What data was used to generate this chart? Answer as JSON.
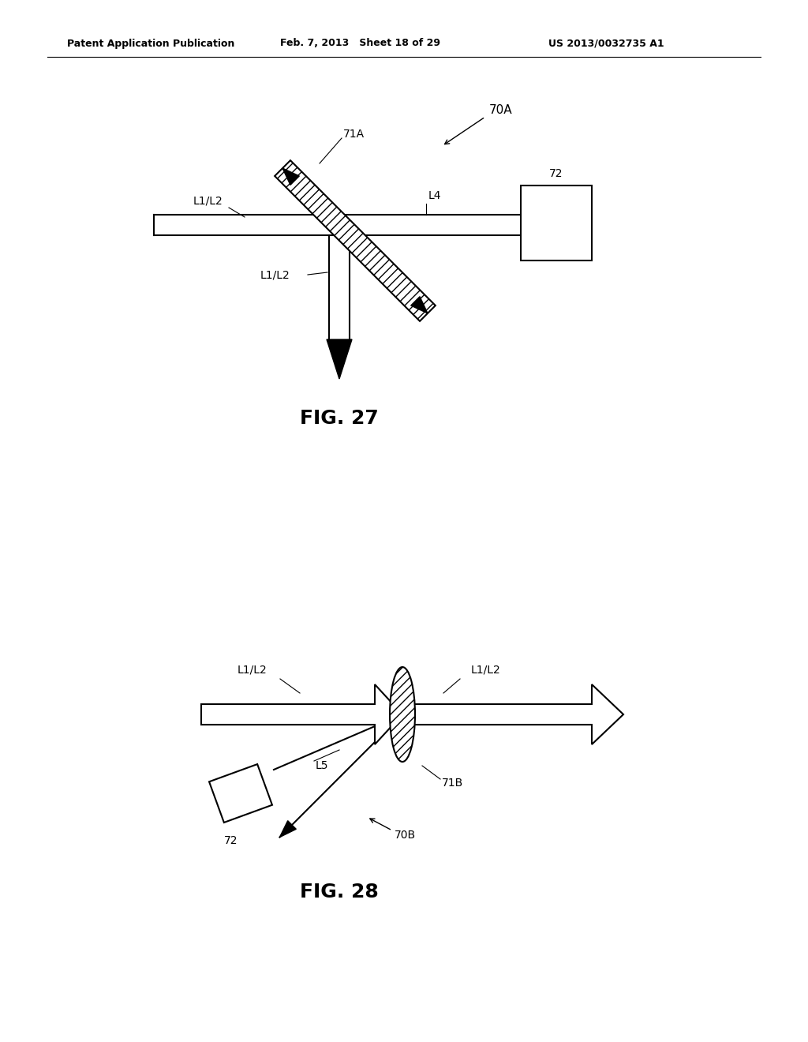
{
  "bg_color": "#ffffff",
  "line_color": "#000000",
  "header_left": "Patent Application Publication",
  "header_mid": "Feb. 7, 2013   Sheet 18 of 29",
  "header_right": "US 2013/0032735 A1",
  "fig27_label": "FIG. 27",
  "fig28_label": "FIG. 28",
  "label_70A": "70A",
  "label_71A": "71A",
  "label_72_top": "72",
  "label_L4": "L4",
  "label_L1L2_left27": "L1/L2",
  "label_L1L2_down27": "L1/L2",
  "label_70B": "70B",
  "label_71B": "71B",
  "label_72_bot": "72",
  "label_L5": "L5",
  "label_L1L2_left28": "L1/L2",
  "label_L1L2_right28": "L1/L2"
}
